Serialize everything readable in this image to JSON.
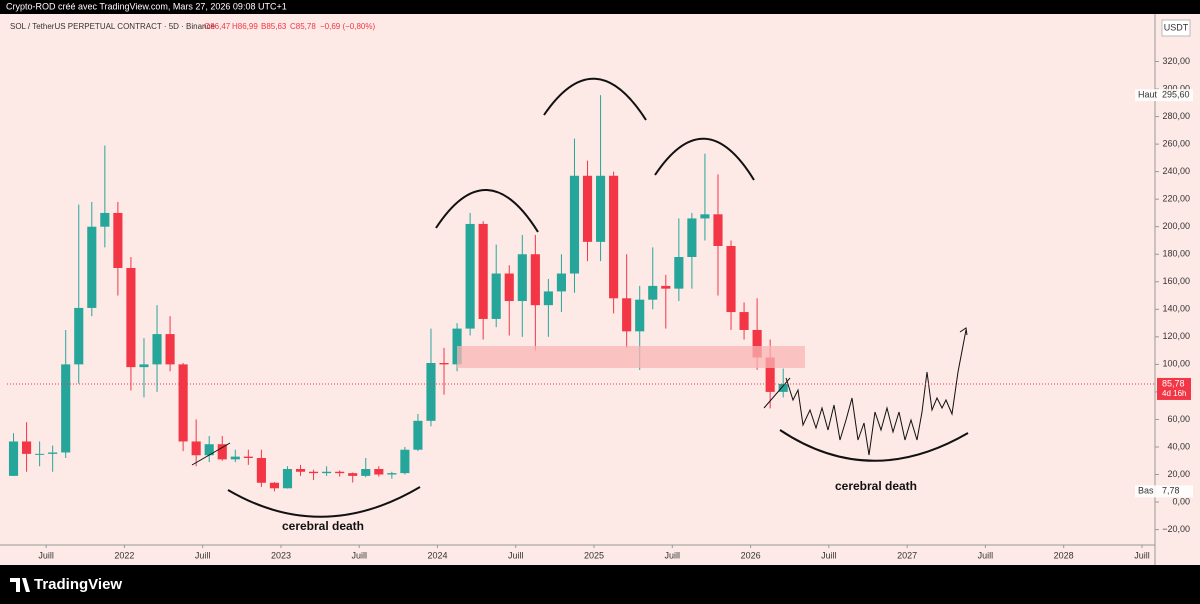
{
  "header": {
    "text": "Crypto-ROD créé avec TradingView.com, Mars 27, 2026 09:08 UTC+1"
  },
  "chart_data": {
    "type": "candlestick",
    "title": "SOL / TetherUS PERPETUAL CONTRACT · 5D · Binance",
    "ohlc_legend": [
      "O86,47",
      "H86,99",
      "B85,63",
      "C85,78",
      "−0,69 (−0,80%)"
    ],
    "currency": "USDT",
    "up_color": "#26a69a",
    "down_color": "#f23645",
    "x": [
      "2021-04",
      "2021-05",
      "2021-06",
      "2021-07",
      "2021-08",
      "2021-09",
      "2021-10",
      "2021-11",
      "2021-12",
      "2022-01",
      "2022-02",
      "2022-03",
      "2022-04",
      "2022-05",
      "2022-06",
      "2022-07",
      "2022-08",
      "2022-09",
      "2022-10",
      "2022-11",
      "2022-12",
      "2023-01",
      "2023-02",
      "2023-03",
      "2023-04",
      "2023-05",
      "2023-06",
      "2023-07",
      "2023-08",
      "2023-09",
      "2023-10",
      "2023-11",
      "2023-12",
      "2024-01",
      "2024-02",
      "2024-03",
      "2024-04",
      "2024-05",
      "2024-06",
      "2024-07",
      "2024-08",
      "2024-09",
      "2024-10",
      "2024-11",
      "2024-12",
      "2025-01",
      "2025-02",
      "2025-03",
      "2025-04",
      "2025-05",
      "2025-06",
      "2025-07",
      "2025-08",
      "2025-09",
      "2025-10",
      "2025-11",
      "2025-12",
      "2026-01",
      "2026-02",
      "2026-03"
    ],
    "open": [
      19,
      44,
      35,
      35,
      36,
      100,
      141,
      200,
      210,
      170,
      98,
      100,
      122,
      100,
      44,
      34,
      42,
      31,
      33,
      32,
      14,
      10,
      24,
      22,
      21,
      22,
      21,
      19,
      24,
      20,
      21,
      38,
      59,
      101,
      100,
      126,
      202,
      133,
      166,
      146,
      180,
      143,
      153,
      166,
      237,
      189,
      237,
      148,
      124,
      147,
      157,
      155,
      178,
      206,
      209,
      186,
      138,
      125,
      105,
      80
    ],
    "high": [
      50,
      58,
      44,
      41,
      125,
      216,
      218,
      259,
      218,
      178,
      119,
      143,
      135,
      101,
      60,
      48,
      48,
      38,
      38,
      38,
      14.5,
      26,
      27,
      23.5,
      26,
      23,
      21.5,
      32,
      26,
      22,
      40,
      64,
      126,
      112,
      130,
      210,
      204,
      187,
      172,
      194,
      194,
      162,
      180,
      264,
      248,
      295.6,
      240,
      180,
      157,
      185,
      165,
      206,
      210,
      253,
      238,
      190,
      145,
      148,
      118,
      97
    ],
    "low": [
      19,
      22,
      26,
      22,
      32,
      86,
      135,
      185,
      150,
      81,
      76,
      80,
      95,
      37,
      26,
      29,
      30,
      29,
      27,
      11,
      7.78,
      9.8,
      19,
      16,
      19,
      18.5,
      14.2,
      18,
      18.5,
      17,
      20,
      37,
      55,
      78,
      95,
      121,
      118,
      127,
      121,
      120,
      110,
      120,
      138,
      152,
      175,
      175,
      137,
      112,
      96,
      140,
      126,
      146,
      155,
      190,
      150,
      125,
      118,
      96,
      68,
      76
    ],
    "close": [
      44,
      35,
      35,
      36,
      100,
      141,
      200,
      210,
      170,
      98,
      100,
      122,
      100,
      44,
      34,
      42,
      31,
      33,
      32,
      14,
      10,
      24,
      22,
      21,
      22,
      21,
      19,
      24,
      20,
      21,
      38,
      59,
      101,
      100,
      126,
      202,
      133,
      166,
      146,
      180,
      143,
      153,
      166,
      237,
      189,
      237,
      148,
      124,
      147,
      157,
      155,
      178,
      206,
      209,
      186,
      138,
      125,
      105,
      80,
      85.78
    ],
    "xlim": [
      "2021-04",
      "2028-08"
    ],
    "xticks": [
      {
        "value": "2021-07",
        "label": "Juill"
      },
      {
        "value": "2022-01",
        "label": "2022"
      },
      {
        "value": "2022-07",
        "label": "Juill"
      },
      {
        "value": "2023-01",
        "label": "2023"
      },
      {
        "value": "2023-07",
        "label": "Juill"
      },
      {
        "value": "2024-01",
        "label": "2024"
      },
      {
        "value": "2024-07",
        "label": "Juill"
      },
      {
        "value": "2025-01",
        "label": "2025"
      },
      {
        "value": "2025-07",
        "label": "Juill"
      },
      {
        "value": "2026-01",
        "label": "2026"
      },
      {
        "value": "2026-07",
        "label": "Juill"
      },
      {
        "value": "2027-01",
        "label": "2027"
      },
      {
        "value": "2027-07",
        "label": "Juill"
      },
      {
        "value": "2028-01",
        "label": "2028"
      },
      {
        "value": "2028-07",
        "label": "Juill"
      }
    ],
    "ylim": [
      -31.2,
      354.5
    ],
    "yticks": [
      {
        "value": -20,
        "label": "−20,00"
      },
      {
        "value": 0,
        "label": "0,00"
      },
      {
        "value": 20,
        "label": "20,00"
      },
      {
        "value": 40,
        "label": "40,00"
      },
      {
        "value": 60,
        "label": "60,00"
      },
      {
        "value": 80,
        "label": "80,00"
      },
      {
        "value": 100,
        "label": "100,00"
      },
      {
        "value": 120,
        "label": "120,00"
      },
      {
        "value": 140,
        "label": "140,00"
      },
      {
        "value": 160,
        "label": "160,00"
      },
      {
        "value": 180,
        "label": "180,00"
      },
      {
        "value": 200,
        "label": "200,00"
      },
      {
        "value": 220,
        "label": "220,00"
      },
      {
        "value": 240,
        "label": "240,00"
      },
      {
        "value": 260,
        "label": "260,00"
      },
      {
        "value": 280,
        "label": "280,00"
      },
      {
        "value": 300,
        "label": "300,00"
      },
      {
        "value": 320,
        "label": "320,00"
      }
    ],
    "last_price": {
      "value": 85.78,
      "label": "85,78"
    },
    "countdown": "4d 16h",
    "high_marker": {
      "name": "Haut",
      "value": 295.6,
      "label": "295,60"
    },
    "low_marker": {
      "name": "Bas",
      "value": 7.78,
      "label": "7,78"
    },
    "annotations": [
      "cerebral death",
      "cerebral death"
    ]
  },
  "footer": {
    "brand": "TradingView"
  }
}
